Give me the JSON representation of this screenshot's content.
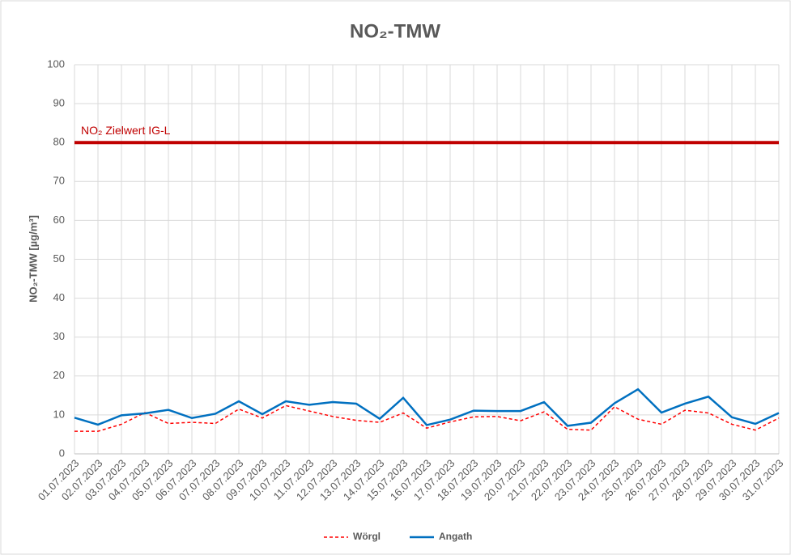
{
  "chart_data": {
    "type": "line",
    "title": "NO₂-TMW",
    "y_label": "NO₂-TMW [µg/m³]",
    "categories": [
      "01.07.2023",
      "02.07.2023",
      "03.07.2023",
      "04.07.2023",
      "05.07.2023",
      "06.07.2023",
      "07.07.2023",
      "08.07.2023",
      "09.07.2023",
      "10.07.2023",
      "11.07.2023",
      "12.07.2023",
      "13.07.2023",
      "14.07.2023",
      "15.07.2023",
      "16.07.2023",
      "17.07.2023",
      "18.07.2023",
      "19.07.2023",
      "20.07.2023",
      "21.07.2023",
      "22.07.2023",
      "23.07.2023",
      "24.07.2023",
      "25.07.2023",
      "26.07.2023",
      "27.07.2023",
      "28.07.2023",
      "29.07.2023",
      "30.07.2023",
      "31.07.2023"
    ],
    "series": [
      {
        "name": "Wörgl",
        "color": "#ff0000",
        "style": "dashed",
        "values": [
          5.8,
          5.8,
          7.6,
          10.6,
          7.8,
          8.1,
          7.8,
          11.5,
          9.2,
          12.4,
          11.0,
          9.6,
          8.6,
          8.1,
          10.5,
          6.6,
          8.2,
          9.5,
          9.6,
          8.5,
          10.8,
          6.3,
          6.1,
          12.1,
          8.9,
          7.6,
          11.2,
          10.5,
          7.6,
          6.1,
          9.2
        ]
      },
      {
        "name": "Angath",
        "color": "#0070c0",
        "style": "solid",
        "values": [
          9.3,
          7.5,
          9.9,
          10.4,
          11.3,
          9.2,
          10.3,
          13.5,
          10.2,
          13.5,
          12.6,
          13.3,
          12.9,
          9.0,
          14.4,
          7.4,
          8.8,
          11.1,
          11.0,
          11.0,
          13.3,
          7.2,
          8.0,
          13.0,
          16.6,
          10.6,
          12.9,
          14.7,
          9.4,
          7.7,
          10.5
        ]
      }
    ],
    "threshold": {
      "label": "NO₂ Zielwert IG-L",
      "value": 80,
      "color": "#c00000"
    },
    "ylim": [
      0,
      100
    ],
    "yticks": [
      0,
      10,
      20,
      30,
      40,
      50,
      60,
      70,
      80,
      90,
      100
    ],
    "grid": true,
    "legend": "bottom"
  }
}
